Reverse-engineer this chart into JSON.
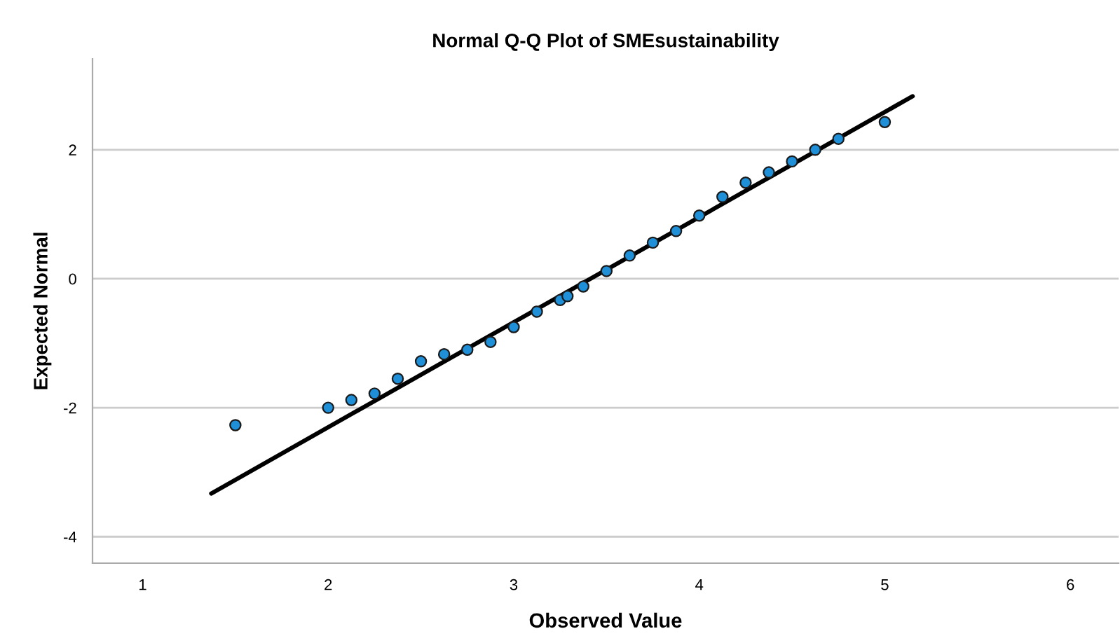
{
  "chart_data": {
    "type": "scatter",
    "title": "Normal Q-Q Plot of SMEsustainability",
    "xlabel": "Observed Value",
    "ylabel": "Expected Normal",
    "xlim": [
      0.73,
      6.26
    ],
    "ylim": [
      -4.41,
      3.41
    ],
    "xticks": [
      1,
      2,
      3,
      4,
      5,
      6
    ],
    "yticks": [
      -4,
      -2,
      0,
      2
    ],
    "grid": "y",
    "series": [
      {
        "marker": "circle",
        "color": "#1f8fd8",
        "x": [
          1.5,
          2.0,
          2.125,
          2.25,
          2.375,
          2.5,
          2.625,
          2.75,
          2.875,
          3.0,
          3.125,
          3.25,
          3.29,
          3.375,
          3.5,
          3.625,
          3.75,
          3.875,
          4.0,
          4.125,
          4.25,
          4.375,
          4.5,
          4.625,
          4.75,
          5.0
        ],
        "values": [
          -2.27,
          -2.0,
          -1.88,
          -1.78,
          -1.55,
          -1.28,
          -1.17,
          -1.1,
          -0.98,
          -0.75,
          -0.51,
          -0.33,
          -0.27,
          -0.12,
          0.12,
          0.36,
          0.56,
          0.74,
          0.98,
          1.27,
          1.49,
          1.65,
          1.82,
          2.0,
          2.17,
          2.43
        ]
      },
      {
        "type": "line",
        "color": "#000000",
        "x": [
          1.37,
          5.15
        ],
        "values": [
          -3.33,
          2.83
        ]
      }
    ]
  }
}
